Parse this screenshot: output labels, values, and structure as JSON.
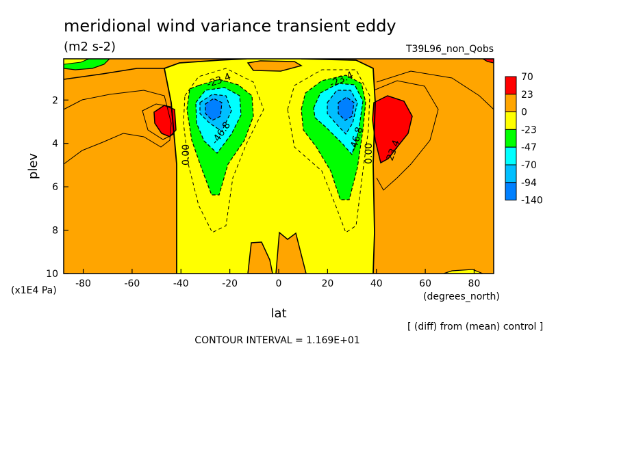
{
  "chart_data": {
    "type": "heatmap",
    "title": "meridional wind variance transient eddy",
    "units": "(m2 s-2)",
    "experiment": "T39L96_non_Qobs",
    "xlabel": "lat",
    "xunits": "(degrees_north)",
    "ylabel": "plev",
    "yunits": "(x1E4 Pa)",
    "xlim": [
      -88,
      88
    ],
    "ylim": [
      10,
      0.1
    ],
    "x_ticks": [
      -80,
      -60,
      -40,
      -20,
      0,
      20,
      40,
      60,
      80
    ],
    "x_tick_labels": [
      "-80",
      "-60",
      "-40",
      "-20",
      "0",
      "20",
      "40",
      "60",
      "80"
    ],
    "y_ticks": [
      2,
      4,
      6,
      8,
      10
    ],
    "y_tick_labels": [
      "2",
      "4",
      "6",
      "8",
      "10"
    ],
    "colorbar": {
      "labels": [
        "70",
        "23",
        "0",
        "-23",
        "-47",
        "-70",
        "-94",
        "-140"
      ],
      "colors": [
        "#ff0000",
        "#ffa500",
        "#ffff00",
        "#00ff00",
        "#00ffff",
        "#00bfff",
        "#0080ff"
      ]
    },
    "contour_labels": [
      "-23.4",
      "-23.4",
      "-46.8",
      "-46.8",
      "0.00",
      "0.00",
      "23.4"
    ],
    "footer_note": "[ (diff) from (mean) control ]",
    "contour_interval_text": "CONTOUR INTERVAL = 1.169E+01",
    "features": [
      {
        "type": "min",
        "lat": -28,
        "plev": 2.5,
        "value": -140
      },
      {
        "type": "min",
        "lat": 28,
        "plev": 2.5,
        "value": -140
      },
      {
        "type": "max",
        "lat": -46,
        "plev": 2.9,
        "value": 70
      },
      {
        "type": "max",
        "lat": 44,
        "plev": 3.2,
        "value": 70
      }
    ]
  }
}
